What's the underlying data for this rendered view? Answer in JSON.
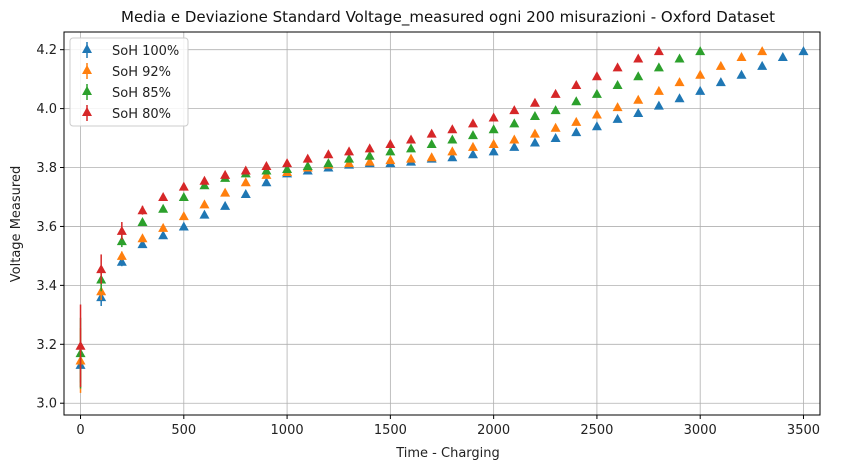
{
  "chart_data": {
    "type": "scatter",
    "title": "Media e Deviazione Standard Voltage_measured ogni 200 misurazioni - Oxford Dataset",
    "xlabel": "Time - Charging",
    "ylabel": "Voltage Measured",
    "xlim": [
      -80,
      3580
    ],
    "ylim": [
      2.96,
      4.26
    ],
    "xticks": [
      0,
      500,
      1000,
      1500,
      2000,
      2500,
      3000,
      3500
    ],
    "yticks": [
      3.0,
      3.2,
      3.4,
      3.6,
      3.8,
      4.0,
      4.2
    ],
    "ytick_labels": [
      "3.0",
      "3.2",
      "3.4",
      "3.6",
      "3.8",
      "4.0",
      "4.2"
    ],
    "grid": true,
    "legend_position": "top-left",
    "marker": "triangle-up",
    "series": [
      {
        "name": "SoH 100%",
        "color": "#1f77b4",
        "x": [
          0,
          100,
          200,
          300,
          400,
          500,
          600,
          700,
          800,
          900,
          1000,
          1100,
          1200,
          1300,
          1400,
          1500,
          1600,
          1700,
          1800,
          1900,
          2000,
          2100,
          2200,
          2300,
          2400,
          2500,
          2600,
          2700,
          2800,
          2900,
          3000,
          3100,
          3200,
          3300,
          3400,
          3500
        ],
        "y": [
          3.13,
          3.36,
          3.48,
          3.54,
          3.57,
          3.6,
          3.64,
          3.67,
          3.71,
          3.75,
          3.78,
          3.79,
          3.8,
          3.81,
          3.815,
          3.815,
          3.82,
          3.83,
          3.835,
          3.845,
          3.855,
          3.87,
          3.885,
          3.9,
          3.92,
          3.94,
          3.965,
          3.985,
          4.01,
          4.035,
          4.06,
          4.09,
          4.115,
          4.145,
          4.175,
          4.195
        ],
        "err": [
          0.06,
          0.03,
          0.015,
          0.01,
          0.01,
          0.01,
          0.01,
          0.01,
          0.01,
          0.01,
          0.005,
          0.005,
          0.005,
          0.005,
          0.005,
          0.005,
          0.005,
          0.005,
          0.005,
          0.005,
          0.005,
          0.005,
          0.005,
          0.005,
          0.005,
          0.005,
          0.005,
          0.005,
          0.005,
          0.005,
          0.005,
          0.005,
          0.005,
          0.005,
          0.005,
          0.005
        ]
      },
      {
        "name": "SoH 92%",
        "color": "#ff7f0e",
        "x": [
          0,
          100,
          200,
          300,
          400,
          500,
          600,
          700,
          800,
          900,
          1000,
          1100,
          1200,
          1300,
          1400,
          1500,
          1600,
          1700,
          1800,
          1900,
          2000,
          2100,
          2200,
          2300,
          2400,
          2500,
          2600,
          2700,
          2800,
          2900,
          3000,
          3100,
          3200,
          3300
        ],
        "y": [
          3.145,
          3.38,
          3.5,
          3.56,
          3.595,
          3.635,
          3.675,
          3.715,
          3.75,
          3.775,
          3.785,
          3.8,
          3.81,
          3.815,
          3.82,
          3.825,
          3.83,
          3.835,
          3.855,
          3.87,
          3.88,
          3.895,
          3.915,
          3.935,
          3.955,
          3.98,
          4.005,
          4.03,
          4.06,
          4.09,
          4.115,
          4.145,
          4.175,
          4.195
        ],
        "err": [
          0.11,
          0.03,
          0.015,
          0.01,
          0.01,
          0.01,
          0.01,
          0.01,
          0.01,
          0.01,
          0.005,
          0.005,
          0.005,
          0.005,
          0.005,
          0.005,
          0.005,
          0.005,
          0.005,
          0.005,
          0.005,
          0.005,
          0.005,
          0.005,
          0.005,
          0.005,
          0.005,
          0.005,
          0.005,
          0.005,
          0.005,
          0.005,
          0.005,
          0.005
        ]
      },
      {
        "name": "SoH 85%",
        "color": "#2ca02c",
        "x": [
          0,
          100,
          200,
          300,
          400,
          500,
          600,
          700,
          800,
          900,
          1000,
          1100,
          1200,
          1300,
          1400,
          1500,
          1600,
          1700,
          1800,
          1900,
          2000,
          2100,
          2200,
          2300,
          2400,
          2500,
          2600,
          2700,
          2800,
          2900,
          3000
        ],
        "y": [
          3.17,
          3.42,
          3.55,
          3.615,
          3.66,
          3.7,
          3.74,
          3.765,
          3.78,
          3.79,
          3.795,
          3.805,
          3.815,
          3.83,
          3.84,
          3.855,
          3.865,
          3.88,
          3.895,
          3.91,
          3.93,
          3.95,
          3.975,
          3.995,
          4.025,
          4.05,
          4.08,
          4.11,
          4.14,
          4.17,
          4.195
        ],
        "err": [
          0.12,
          0.04,
          0.02,
          0.01,
          0.01,
          0.01,
          0.01,
          0.01,
          0.01,
          0.005,
          0.005,
          0.005,
          0.005,
          0.005,
          0.005,
          0.005,
          0.005,
          0.005,
          0.005,
          0.005,
          0.005,
          0.005,
          0.005,
          0.005,
          0.005,
          0.005,
          0.005,
          0.005,
          0.005,
          0.005,
          0.005
        ]
      },
      {
        "name": "SoH 80%",
        "color": "#d62728",
        "x": [
          0,
          100,
          200,
          300,
          400,
          500,
          600,
          700,
          800,
          900,
          1000,
          1100,
          1200,
          1300,
          1400,
          1500,
          1600,
          1700,
          1800,
          1900,
          2000,
          2100,
          2200,
          2300,
          2400,
          2500,
          2600,
          2700,
          2800
        ],
        "y": [
          3.195,
          3.455,
          3.585,
          3.655,
          3.7,
          3.735,
          3.755,
          3.775,
          3.79,
          3.805,
          3.815,
          3.83,
          3.845,
          3.855,
          3.865,
          3.88,
          3.895,
          3.915,
          3.93,
          3.95,
          3.97,
          3.995,
          4.02,
          4.05,
          4.08,
          4.11,
          4.14,
          4.17,
          4.195
        ],
        "err": [
          0.14,
          0.05,
          0.03,
          0.015,
          0.01,
          0.01,
          0.01,
          0.01,
          0.01,
          0.01,
          0.005,
          0.005,
          0.005,
          0.005,
          0.005,
          0.005,
          0.005,
          0.005,
          0.005,
          0.005,
          0.005,
          0.005,
          0.005,
          0.005,
          0.005,
          0.005,
          0.005,
          0.005,
          0.005
        ]
      }
    ]
  }
}
